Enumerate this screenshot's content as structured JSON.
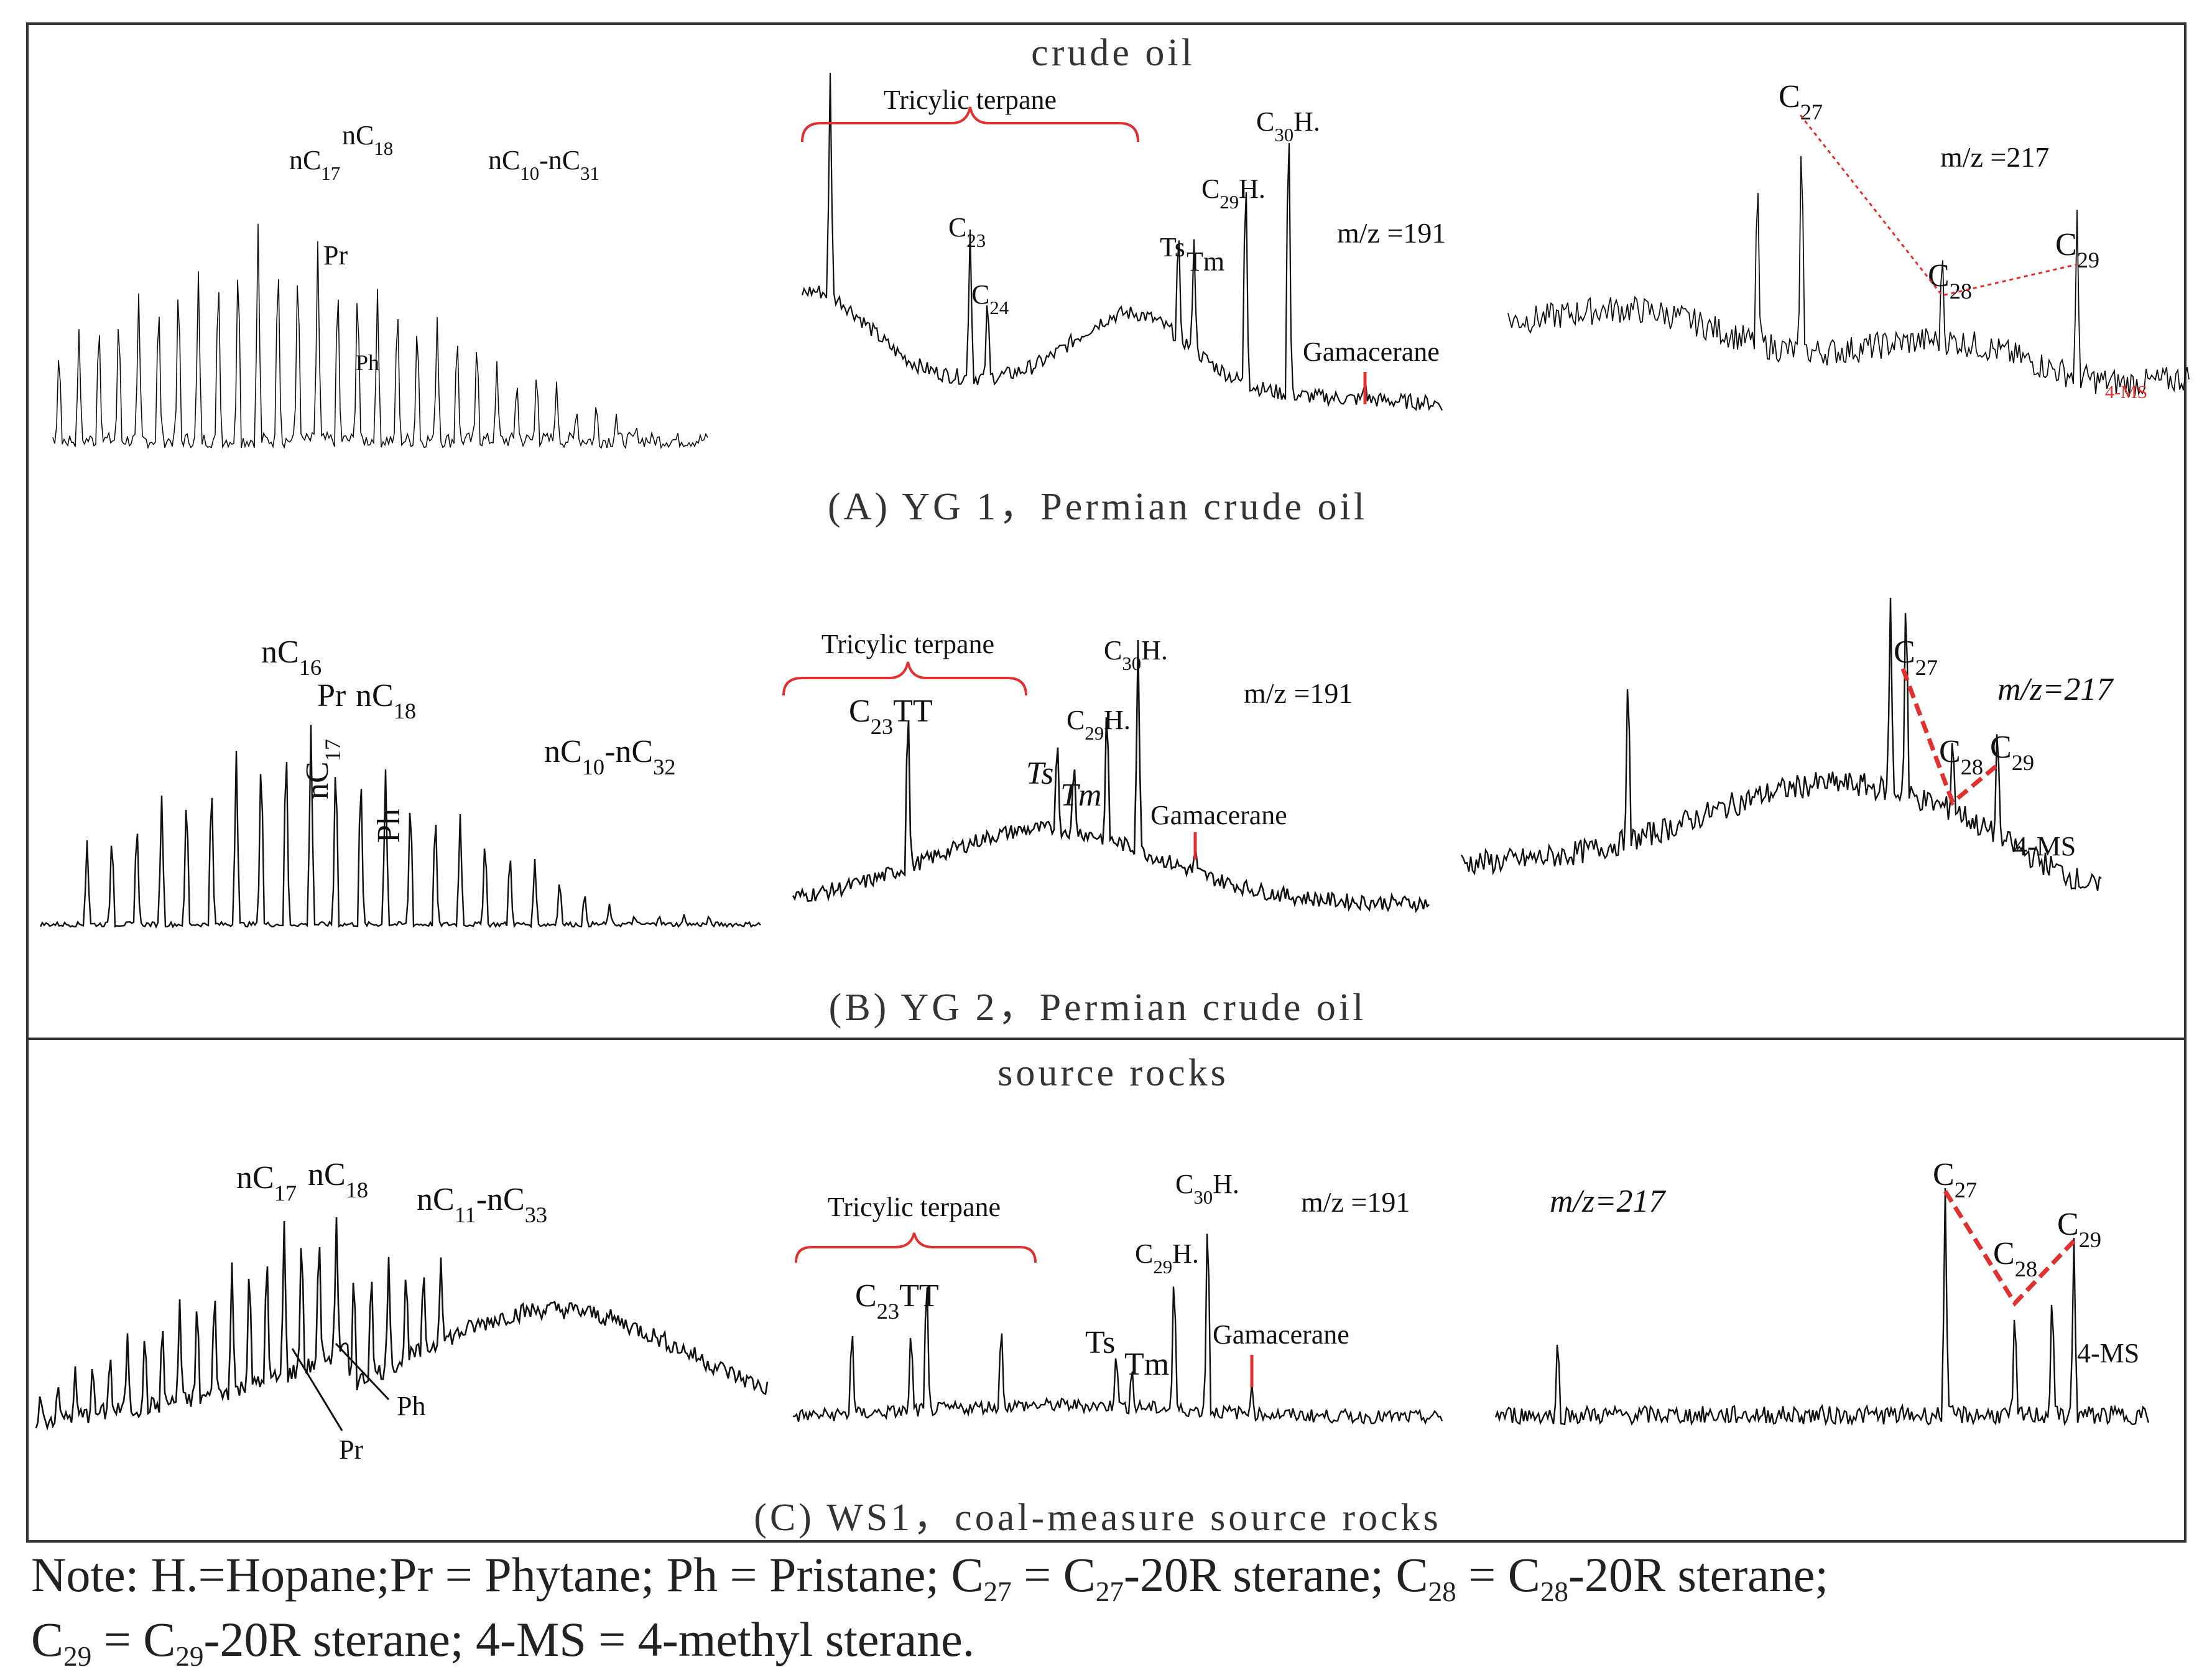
{
  "sections": {
    "crude_oil": "crude oil",
    "source_rocks": "source rocks"
  },
  "rows": [
    {
      "caption": "(A)  YG 1，Permian crude oil",
      "alkane": {
        "range": "nC10-nC31",
        "nc17": "nC17",
        "nc18": "nC18",
        "pr": "Pr",
        "ph": "Ph"
      },
      "terpane": {
        "bracket": "Tricylic terpane",
        "c23": "C23",
        "c24": "C24",
        "ts": "Ts",
        "tm": "Tm",
        "c29h": "C29H.",
        "c30h": "C30H.",
        "gam": "Gamacerane",
        "mz": "m/z =191"
      },
      "sterane": {
        "mz": "m/z =217",
        "c27": "C27",
        "c28": "C28",
        "c29": "C29",
        "ms": "4-MS"
      }
    },
    {
      "caption": "(B)  YG 2，Permian crude oil",
      "alkane": {
        "range": "nC10-nC32",
        "nc16": "nC16",
        "nc17": "nC17",
        "pr": "Pr",
        "nc18": "nC18",
        "ph": "Ph"
      },
      "terpane": {
        "bracket": "Tricylic terpane",
        "c23tt": "C23TT",
        "ts": "Ts",
        "tm": "Tm",
        "c29h": "C29H.",
        "c30h": "C30H.",
        "gam": "Gamacerane",
        "mz": "m/z =191"
      },
      "sterane": {
        "mz": "m/z=217",
        "c27": "C27",
        "c28": "C28",
        "c29": "C29",
        "ms": "4-MS"
      }
    },
    {
      "caption": "(C)  WS1，coal-measure source rocks",
      "alkane": {
        "range": "nC11-nC33",
        "nc17": "nC17",
        "nc18": "nC18",
        "pr": "Pr",
        "ph": "Ph"
      },
      "terpane": {
        "bracket": "Tricylic terpane",
        "c23tt": "C23TT",
        "ts": "Ts",
        "tm": "Tm",
        "c29h": "C29H.",
        "c30h": "C30H.",
        "gam": "Gamacerane",
        "mz": "m/z =191"
      },
      "sterane": {
        "mz": "m/z=217",
        "c27": "C27",
        "c28": "C28",
        "c29": "C29",
        "ms": "4-MS"
      }
    }
  ],
  "note": {
    "line1": "Note: H.=Hopane;Pr = Phytane; Ph = Pristane; C27 = C27-20R sterane; C28 = C28-20R sterane;",
    "line2": "C29 = C29-20R sterane; 4-MS = 4-methyl sterane."
  },
  "chart_data": [
    {
      "type": "line",
      "title": "nC10-nC31",
      "panel": "A alkane",
      "peaks": [
        "nC17",
        "nC18",
        "Pr",
        "Ph"
      ]
    },
    {
      "type": "line",
      "title": "m/z =191",
      "panel": "A terpane",
      "peaks": [
        "C23",
        "C24",
        "Ts",
        "Tm",
        "C29H.",
        "C30H.",
        "Gamacerane"
      ]
    },
    {
      "type": "line",
      "title": "m/z =217",
      "panel": "A sterane",
      "peaks": [
        "C27",
        "C28",
        "C29",
        "4-MS"
      ]
    },
    {
      "type": "line",
      "title": "nC10-nC32",
      "panel": "B alkane",
      "peaks": [
        "nC16",
        "nC17",
        "Pr",
        "nC18",
        "Ph"
      ]
    },
    {
      "type": "line",
      "title": "m/z =191",
      "panel": "B terpane",
      "peaks": [
        "C23TT",
        "Ts",
        "Tm",
        "C29H.",
        "C30H.",
        "Gamacerane"
      ]
    },
    {
      "type": "line",
      "title": "m/z=217",
      "panel": "B sterane",
      "peaks": [
        "C27",
        "C28",
        "C29",
        "4-MS"
      ]
    },
    {
      "type": "line",
      "title": "nC11-nC33",
      "panel": "C alkane",
      "peaks": [
        "nC17",
        "nC18",
        "Pr",
        "Ph"
      ]
    },
    {
      "type": "line",
      "title": "m/z =191",
      "panel": "C terpane",
      "peaks": [
        "C23TT",
        "Ts",
        "Tm",
        "C29H.",
        "C30H.",
        "Gamacerane"
      ]
    },
    {
      "type": "line",
      "title": "m/z=217",
      "panel": "C sterane",
      "peaks": [
        "C27",
        "C28",
        "C29",
        "4-MS"
      ]
    }
  ],
  "colors": {
    "trace": "#111111",
    "annotation_red": "#e03030",
    "frame": "#333333"
  }
}
